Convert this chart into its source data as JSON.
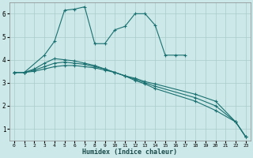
{
  "xlabel": "Humidex (Indice chaleur)",
  "xlim": [
    -0.5,
    23.5
  ],
  "ylim": [
    0.5,
    6.5
  ],
  "yticks": [
    1,
    2,
    3,
    4,
    5,
    6
  ],
  "xticks": [
    0,
    1,
    2,
    3,
    4,
    5,
    6,
    7,
    8,
    9,
    10,
    11,
    12,
    13,
    14,
    15,
    16,
    17,
    18,
    19,
    20,
    21,
    22,
    23
  ],
  "bg_color": "#cce8e8",
  "grid_color": "#aacccc",
  "line_color": "#1a7070",
  "peaked_x": [
    0,
    1,
    3,
    4,
    5,
    6,
    7,
    8,
    9,
    10,
    11,
    12,
    13,
    14,
    15,
    16,
    17
  ],
  "peaked_y": [
    3.45,
    3.45,
    4.2,
    4.8,
    6.15,
    6.2,
    6.3,
    4.7,
    4.7,
    5.3,
    5.45,
    6.0,
    6.0,
    5.5,
    4.2,
    4.2,
    4.2
  ],
  "line2_x": [
    0,
    1,
    2,
    3,
    4,
    5,
    6,
    7,
    8,
    9,
    10,
    11,
    12,
    13,
    14,
    18,
    20,
    22,
    23
  ],
  "line2_y": [
    3.45,
    3.45,
    3.5,
    3.6,
    3.7,
    3.75,
    3.75,
    3.7,
    3.65,
    3.55,
    3.45,
    3.3,
    3.2,
    3.05,
    2.95,
    2.5,
    2.2,
    1.3,
    0.65
  ],
  "line3_x": [
    0,
    1,
    2,
    3,
    4,
    5,
    6,
    7,
    8,
    9,
    10,
    11,
    12,
    13,
    14,
    18,
    20,
    22,
    23
  ],
  "line3_y": [
    3.45,
    3.45,
    3.55,
    3.7,
    3.85,
    3.9,
    3.85,
    3.8,
    3.7,
    3.6,
    3.45,
    3.3,
    3.15,
    3.0,
    2.85,
    2.35,
    2.0,
    1.3,
    0.65
  ],
  "line4_x": [
    0,
    1,
    2,
    3,
    4,
    5,
    6,
    7,
    8,
    9,
    10,
    11,
    12,
    13,
    14,
    18,
    20,
    22,
    23
  ],
  "line4_y": [
    3.45,
    3.45,
    3.6,
    3.85,
    4.05,
    4.0,
    3.95,
    3.85,
    3.75,
    3.6,
    3.45,
    3.3,
    3.1,
    2.95,
    2.75,
    2.2,
    1.8,
    1.3,
    0.65
  ]
}
